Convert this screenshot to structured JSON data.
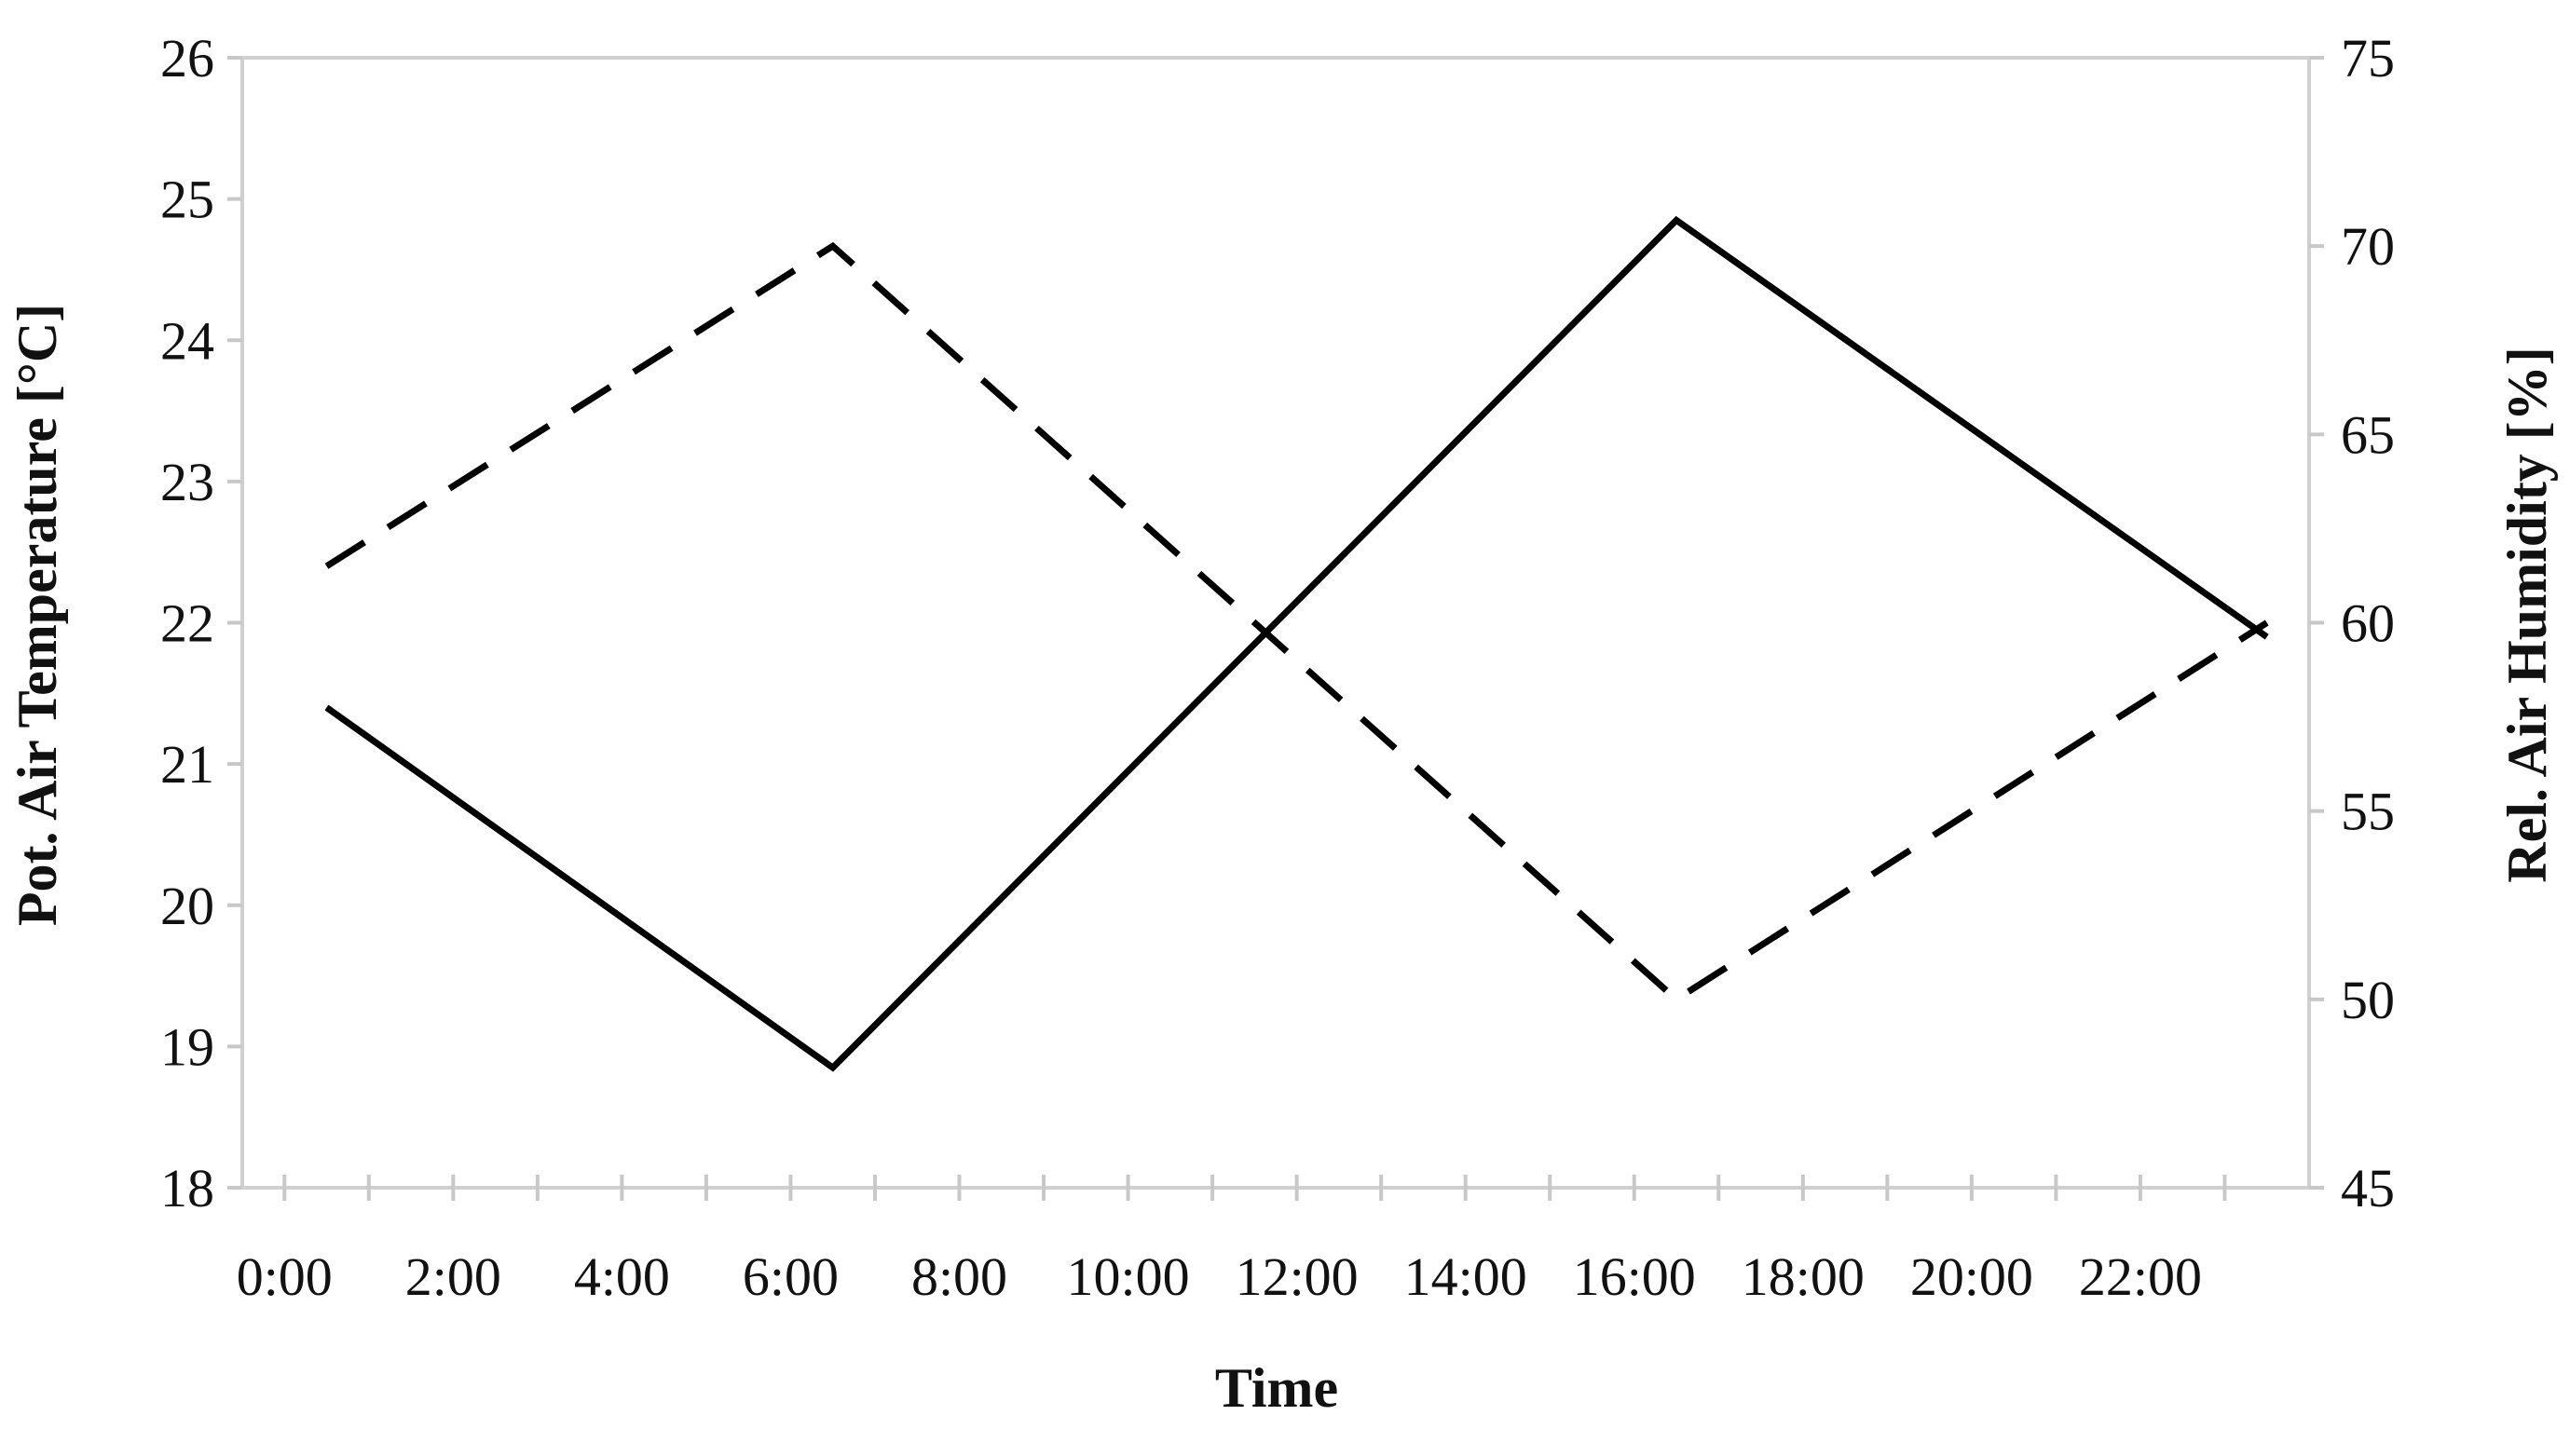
{
  "chart_data": {
    "type": "line",
    "xlabel": "Time",
    "ylabel_left": "Pot. Air Temperature [°C]",
    "ylabel_right": "Rel. Air Humidity [%]",
    "x_ticks": [
      "0:00",
      "2:00",
      "4:00",
      "6:00",
      "8:00",
      "10:00",
      "12:00",
      "14:00",
      "16:00",
      "18:00",
      "20:00",
      "22:00"
    ],
    "xlim_hours": [
      -0.5,
      24
    ],
    "ylim_left": [
      18,
      26
    ],
    "yticks_left": [
      18,
      19,
      20,
      21,
      22,
      23,
      24,
      25,
      26
    ],
    "ylim_right": [
      45,
      75
    ],
    "yticks_right": [
      45,
      50,
      55,
      60,
      65,
      70,
      75
    ],
    "grid": false,
    "series": [
      {
        "axis": "left",
        "style": "solid",
        "color": "#000000",
        "x_hours": [
          0.5,
          6.5,
          16.5,
          23.5
        ],
        "values": [
          21.4,
          18.85,
          24.85,
          21.9
        ]
      },
      {
        "axis": "right",
        "style": "dashed",
        "color": "#000000",
        "x_hours": [
          0.5,
          6.5,
          16.5,
          23.5
        ],
        "values": [
          61.5,
          70,
          50,
          60
        ]
      }
    ]
  }
}
